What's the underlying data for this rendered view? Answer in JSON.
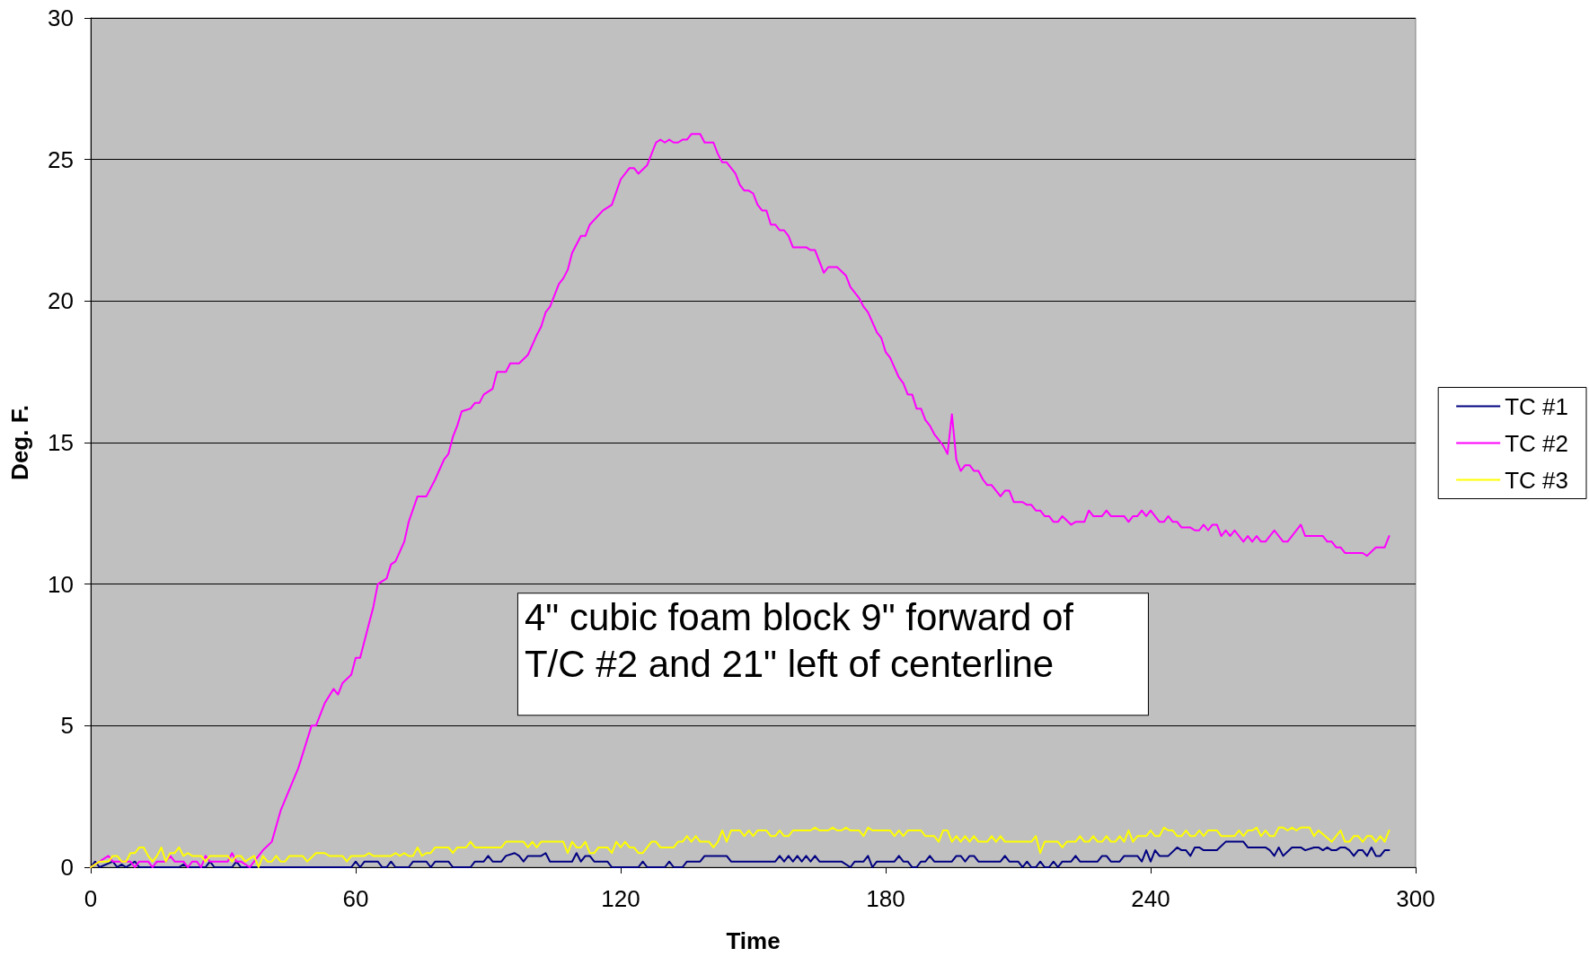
{
  "chart_data": {
    "type": "line",
    "xlabel": "Time",
    "ylabel": "Deg. F.",
    "xlim": [
      0,
      300
    ],
    "xticks": [
      0,
      60,
      120,
      180,
      240,
      300
    ],
    "ylim": [
      0,
      30
    ],
    "yticks": [
      0,
      5,
      10,
      15,
      20,
      25,
      30
    ],
    "grid": "y",
    "legend": "right",
    "marker": "none",
    "line_style": "solid",
    "annotations": [
      "4\" cubic foam block 9\" forward of T/C #2 and 21\" left of centerline"
    ],
    "series": [
      {
        "name": "TC #1",
        "color": "#000080",
        "x": [
          0,
          1,
          2,
          5,
          6,
          7,
          8,
          10,
          11,
          20,
          21,
          22,
          26,
          27,
          28,
          32,
          33,
          34,
          59,
          60,
          61,
          62,
          65,
          66,
          67,
          68,
          69,
          72,
          73,
          76,
          77,
          78,
          81,
          82,
          86,
          87,
          89,
          90,
          91,
          93,
          94,
          96,
          97,
          98,
          99,
          102,
          103,
          104,
          109,
          110,
          111,
          112,
          113,
          114,
          117,
          118,
          124,
          125,
          126,
          130,
          131,
          132,
          134,
          135,
          138,
          139,
          144,
          145,
          155,
          156,
          157,
          158,
          159,
          160,
          161,
          162,
          163,
          164,
          165,
          170,
          172,
          173,
          175,
          176,
          177,
          178,
          182,
          183,
          184,
          185,
          186,
          187,
          188,
          189,
          190,
          191,
          195,
          196,
          197,
          198,
          199,
          200,
          201,
          206,
          207,
          208,
          210,
          211,
          212,
          213,
          214,
          215,
          216,
          217,
          218,
          219,
          220,
          222,
          223,
          224,
          228,
          229,
          230,
          231,
          233,
          234,
          237,
          238,
          239,
          240,
          241,
          242,
          244,
          246,
          247,
          248,
          249,
          250,
          251,
          252,
          255,
          257,
          261,
          262,
          266,
          267,
          268,
          269,
          270,
          272,
          274,
          275,
          277,
          278,
          279,
          280,
          281,
          282,
          283,
          284,
          285,
          286,
          287,
          288,
          289,
          290,
          291,
          292,
          293,
          294
        ],
        "values": [
          0,
          0.2,
          0,
          0.2,
          0,
          0.1,
          0,
          0.2,
          0,
          0,
          0.1,
          0,
          0,
          0.2,
          0,
          0,
          0.2,
          0,
          0,
          0.2,
          0,
          0.2,
          0.2,
          0,
          0,
          0.2,
          0,
          0,
          0.2,
          0.2,
          0,
          0.2,
          0.2,
          0,
          0,
          0.2,
          0.2,
          0.4,
          0.2,
          0.2,
          0.4,
          0.5,
          0.4,
          0.2,
          0.4,
          0.4,
          0.5,
          0.2,
          0.2,
          0.5,
          0.2,
          0.4,
          0.4,
          0.2,
          0.2,
          0,
          0,
          0.2,
          0,
          0,
          0.2,
          0,
          0,
          0.2,
          0.2,
          0.4,
          0.4,
          0.2,
          0.2,
          0.4,
          0.2,
          0.4,
          0.2,
          0.4,
          0.2,
          0.4,
          0.2,
          0.4,
          0.2,
          0.2,
          0,
          0.2,
          0.2,
          0.4,
          0,
          0.2,
          0.2,
          0.4,
          0.2,
          0.2,
          0,
          0,
          0.2,
          0.2,
          0.4,
          0.2,
          0.2,
          0.4,
          0.4,
          0.2,
          0.4,
          0.4,
          0.2,
          0.2,
          0.4,
          0.2,
          0.2,
          0,
          0.2,
          0,
          0,
          0.2,
          0,
          0,
          0.2,
          0,
          0.2,
          0.2,
          0.4,
          0.2,
          0.2,
          0.4,
          0.4,
          0.2,
          0.2,
          0.4,
          0.4,
          0.2,
          0.6,
          0.2,
          0.6,
          0.4,
          0.4,
          0.7,
          0.6,
          0.6,
          0.4,
          0.7,
          0.7,
          0.6,
          0.6,
          0.9,
          0.9,
          0.7,
          0.7,
          0.6,
          0.4,
          0.7,
          0.4,
          0.7,
          0.7,
          0.6,
          0.7,
          0.7,
          0.6,
          0.7,
          0.6,
          0.6,
          0.7,
          0.7,
          0.6,
          0.4,
          0.6,
          0.6,
          0.4,
          0.7,
          0.4,
          0.4,
          0.6,
          0.6
        ]
      },
      {
        "name": "TC #2",
        "color": "#ff00ff",
        "x": [
          0,
          2,
          4,
          5,
          8,
          9,
          10,
          11,
          13,
          14,
          15,
          17,
          18,
          19,
          21,
          22,
          23,
          24,
          25,
          26,
          27,
          31,
          32,
          33,
          34,
          36,
          37,
          39,
          41,
          43,
          47,
          50,
          51,
          53,
          55,
          56,
          57,
          59,
          60,
          61,
          63,
          64,
          65,
          67,
          68,
          69,
          71,
          72,
          74,
          76,
          78,
          80,
          81,
          82,
          83,
          84,
          86,
          87,
          88,
          89,
          91,
          92,
          94,
          95,
          97,
          99,
          101,
          102,
          103,
          104,
          106,
          107,
          108,
          109,
          111,
          112,
          113,
          116,
          118,
          120,
          122,
          123,
          124,
          126,
          128,
          129,
          130,
          131,
          132,
          133,
          134,
          135,
          136,
          138,
          139,
          141,
          142,
          143,
          144,
          146,
          147,
          148,
          149,
          150,
          151,
          152,
          153,
          154,
          155,
          156,
          157,
          158,
          159,
          162,
          163,
          164,
          166,
          167,
          169,
          171,
          172,
          174,
          175,
          176,
          178,
          179,
          180,
          181,
          183,
          184,
          185,
          186,
          187,
          188,
          189,
          190,
          191,
          192,
          193,
          194,
          195,
          196,
          197,
          198,
          199,
          200,
          201,
          202,
          203,
          204,
          206,
          207,
          208,
          209,
          211,
          212,
          213,
          214,
          215,
          216,
          217,
          218,
          219,
          220,
          222,
          223,
          225,
          226,
          227,
          229,
          230,
          231,
          234,
          235,
          236,
          237,
          238,
          239,
          240,
          242,
          243,
          244,
          245,
          246,
          247,
          249,
          250,
          251,
          252,
          253,
          254,
          255,
          256,
          257,
          258,
          259,
          261,
          262,
          263,
          264,
          265,
          266,
          268,
          270,
          271,
          274,
          275,
          279,
          280,
          281,
          282,
          283,
          284,
          288,
          289,
          291,
          293,
          294
        ],
        "values": [
          0,
          0.2,
          0.4,
          0.2,
          0.2,
          0.2,
          0,
          0.2,
          0.2,
          0,
          0.2,
          0.2,
          0.4,
          0.2,
          0.2,
          0,
          0.2,
          0.2,
          0,
          0.4,
          0.2,
          0.2,
          0.5,
          0.2,
          0.2,
          0,
          0.2,
          0.6,
          0.9,
          2.0,
          3.5,
          5.0,
          5.0,
          5.8,
          6.3,
          6.1,
          6.5,
          6.8,
          7.4,
          7.4,
          8.6,
          9.2,
          10.0,
          10.2,
          10.7,
          10.8,
          11.5,
          12.2,
          13.1,
          13.1,
          13.7,
          14.4,
          14.6,
          15.2,
          15.6,
          16.1,
          16.2,
          16.4,
          16.4,
          16.7,
          16.9,
          17.5,
          17.5,
          17.8,
          17.8,
          18.1,
          18.8,
          19.1,
          19.6,
          19.8,
          20.6,
          20.8,
          21.1,
          21.7,
          22.3,
          22.3,
          22.7,
          23.2,
          23.4,
          24.3,
          24.7,
          24.7,
          24.5,
          24.8,
          25.6,
          25.7,
          25.6,
          25.7,
          25.6,
          25.6,
          25.7,
          25.7,
          25.9,
          25.9,
          25.6,
          25.6,
          25.2,
          24.9,
          24.9,
          24.5,
          24.1,
          23.9,
          23.9,
          23.8,
          23.4,
          23.2,
          23.2,
          22.7,
          22.7,
          22.5,
          22.5,
          22.3,
          21.9,
          21.9,
          21.8,
          21.8,
          21.0,
          21.2,
          21.2,
          20.9,
          20.5,
          20.1,
          19.8,
          19.6,
          18.9,
          18.7,
          18.2,
          18.0,
          17.3,
          17.1,
          16.7,
          16.7,
          16.2,
          16.2,
          15.8,
          15.6,
          15.3,
          15.1,
          14.9,
          14.6,
          16.0,
          14.4,
          14.0,
          14.2,
          14.2,
          14.0,
          14.0,
          13.7,
          13.5,
          13.5,
          13.1,
          13.3,
          13.3,
          12.9,
          12.9,
          12.8,
          12.8,
          12.6,
          12.6,
          12.4,
          12.4,
          12.2,
          12.2,
          12.4,
          12.1,
          12.2,
          12.2,
          12.6,
          12.4,
          12.4,
          12.6,
          12.4,
          12.4,
          12.2,
          12.4,
          12.4,
          12.6,
          12.4,
          12.6,
          12.2,
          12.2,
          12.4,
          12.2,
          12.2,
          12.0,
          12.0,
          11.9,
          11.9,
          12.1,
          11.9,
          12.1,
          12.1,
          11.7,
          11.9,
          11.7,
          11.9,
          11.5,
          11.7,
          11.5,
          11.7,
          11.5,
          11.5,
          11.9,
          11.5,
          11.5,
          12.1,
          11.7,
          11.7,
          11.5,
          11.5,
          11.3,
          11.3,
          11.1,
          11.1,
          11.0,
          11.3,
          11.3,
          11.7
        ]
      },
      {
        "name": "TC #3",
        "color": "#ffff00",
        "x": [
          0,
          2,
          4,
          5,
          6,
          7,
          8,
          9,
          10,
          11,
          12,
          13,
          14,
          15,
          16,
          17,
          18,
          19,
          20,
          21,
          22,
          23,
          25,
          26,
          27,
          31,
          32,
          33,
          34,
          35,
          37,
          38,
          39,
          40,
          41,
          42,
          43,
          44,
          45,
          48,
          49,
          51,
          53,
          54,
          57,
          58,
          59,
          62,
          63,
          64,
          68,
          69,
          70,
          71,
          72,
          73,
          74,
          75,
          76,
          77,
          78,
          81,
          82,
          83,
          85,
          86,
          87,
          93,
          94,
          98,
          99,
          100,
          101,
          102,
          107,
          108,
          109,
          110,
          111,
          112,
          113,
          114,
          115,
          117,
          118,
          119,
          120,
          121,
          122,
          123,
          124,
          125,
          127,
          128,
          129,
          132,
          133,
          134,
          135,
          136,
          137,
          138,
          140,
          141,
          142,
          143,
          144,
          145,
          147,
          148,
          149,
          150,
          151,
          153,
          154,
          155,
          156,
          157,
          158,
          159,
          163,
          164,
          165,
          167,
          168,
          169,
          170,
          171,
          172,
          174,
          175,
          176,
          177,
          181,
          182,
          183,
          184,
          185,
          188,
          189,
          191,
          192,
          193,
          194,
          195,
          196,
          197,
          198,
          199,
          200,
          201,
          203,
          204,
          205,
          206,
          207,
          213,
          214,
          215,
          216,
          219,
          220,
          221,
          223,
          224,
          225,
          226,
          227,
          228,
          229,
          230,
          231,
          232,
          233,
          234,
          235,
          236,
          237,
          239,
          240,
          241,
          242,
          243,
          244,
          245,
          246,
          247,
          248,
          249,
          250,
          251,
          252,
          253,
          255,
          256,
          259,
          260,
          261,
          262,
          263,
          264,
          265,
          266,
          267,
          268,
          269,
          270,
          271,
          272,
          273,
          274,
          276,
          277,
          278,
          281,
          283,
          284,
          285,
          286,
          287,
          288,
          289,
          290,
          291,
          292,
          293,
          294
        ],
        "values": [
          0,
          0.2,
          0.2,
          0.4,
          0.4,
          0.2,
          0.2,
          0.5,
          0.5,
          0.7,
          0.7,
          0.4,
          0.2,
          0.4,
          0.7,
          0.2,
          0.5,
          0.5,
          0.7,
          0.4,
          0.5,
          0.4,
          0.4,
          0.2,
          0.4,
          0.4,
          0.2,
          0.4,
          0.4,
          0.2,
          0.4,
          0,
          0.4,
          0.2,
          0.2,
          0.4,
          0.2,
          0.2,
          0.4,
          0.4,
          0.2,
          0.5,
          0.5,
          0.4,
          0.4,
          0.2,
          0.4,
          0.4,
          0.5,
          0.4,
          0.4,
          0.5,
          0.4,
          0.5,
          0.4,
          0.4,
          0.7,
          0.4,
          0.5,
          0.5,
          0.7,
          0.7,
          0.5,
          0.7,
          0.7,
          0.9,
          0.7,
          0.7,
          0.9,
          0.9,
          0.7,
          0.9,
          0.7,
          0.9,
          0.9,
          0.5,
          0.9,
          0.7,
          0.7,
          0.9,
          0.5,
          0.5,
          0.7,
          0.7,
          0.5,
          0.9,
          0.7,
          0.9,
          0.7,
          0.7,
          0.5,
          0.5,
          0.9,
          0.9,
          0.7,
          0.7,
          0.9,
          0.9,
          1.1,
          0.9,
          1.1,
          0.9,
          0.9,
          0.7,
          0.9,
          1.3,
          0.9,
          1.3,
          1.3,
          1.1,
          1.3,
          1.1,
          1.3,
          1.3,
          1.1,
          1.1,
          1.3,
          1.1,
          1.1,
          1.3,
          1.3,
          1.4,
          1.3,
          1.3,
          1.4,
          1.3,
          1.3,
          1.4,
          1.3,
          1.3,
          1.1,
          1.4,
          1.3,
          1.3,
          1.1,
          1.3,
          1.1,
          1.3,
          1.3,
          1.1,
          1.1,
          0.9,
          1.3,
          1.3,
          0.9,
          1.1,
          0.9,
          1.1,
          0.9,
          1.1,
          0.9,
          0.9,
          1.1,
          0.9,
          1.1,
          0.9,
          0.9,
          1.1,
          0.5,
          0.9,
          0.9,
          0.7,
          0.9,
          0.9,
          1.1,
          0.9,
          0.9,
          1.1,
          0.9,
          0.9,
          1.1,
          0.9,
          0.9,
          1.1,
          0.9,
          1.3,
          0.9,
          1.1,
          1.1,
          1.3,
          1.1,
          1.1,
          1.4,
          1.3,
          1.3,
          1.1,
          1.1,
          1.3,
          1.1,
          1.1,
          1.3,
          1.1,
          1.3,
          1.3,
          1.1,
          1.1,
          1.3,
          1.1,
          1.3,
          1.3,
          1.4,
          1.1,
          1.3,
          1.1,
          1.1,
          1.4,
          1.4,
          1.3,
          1.4,
          1.3,
          1.4,
          1.4,
          1.1,
          1.3,
          0.9,
          1.3,
          0.9,
          0.9,
          1.1,
          1.1,
          0.9,
          1.1,
          1.1,
          0.9,
          1.1,
          0.9,
          1.3
        ]
      }
    ]
  }
}
